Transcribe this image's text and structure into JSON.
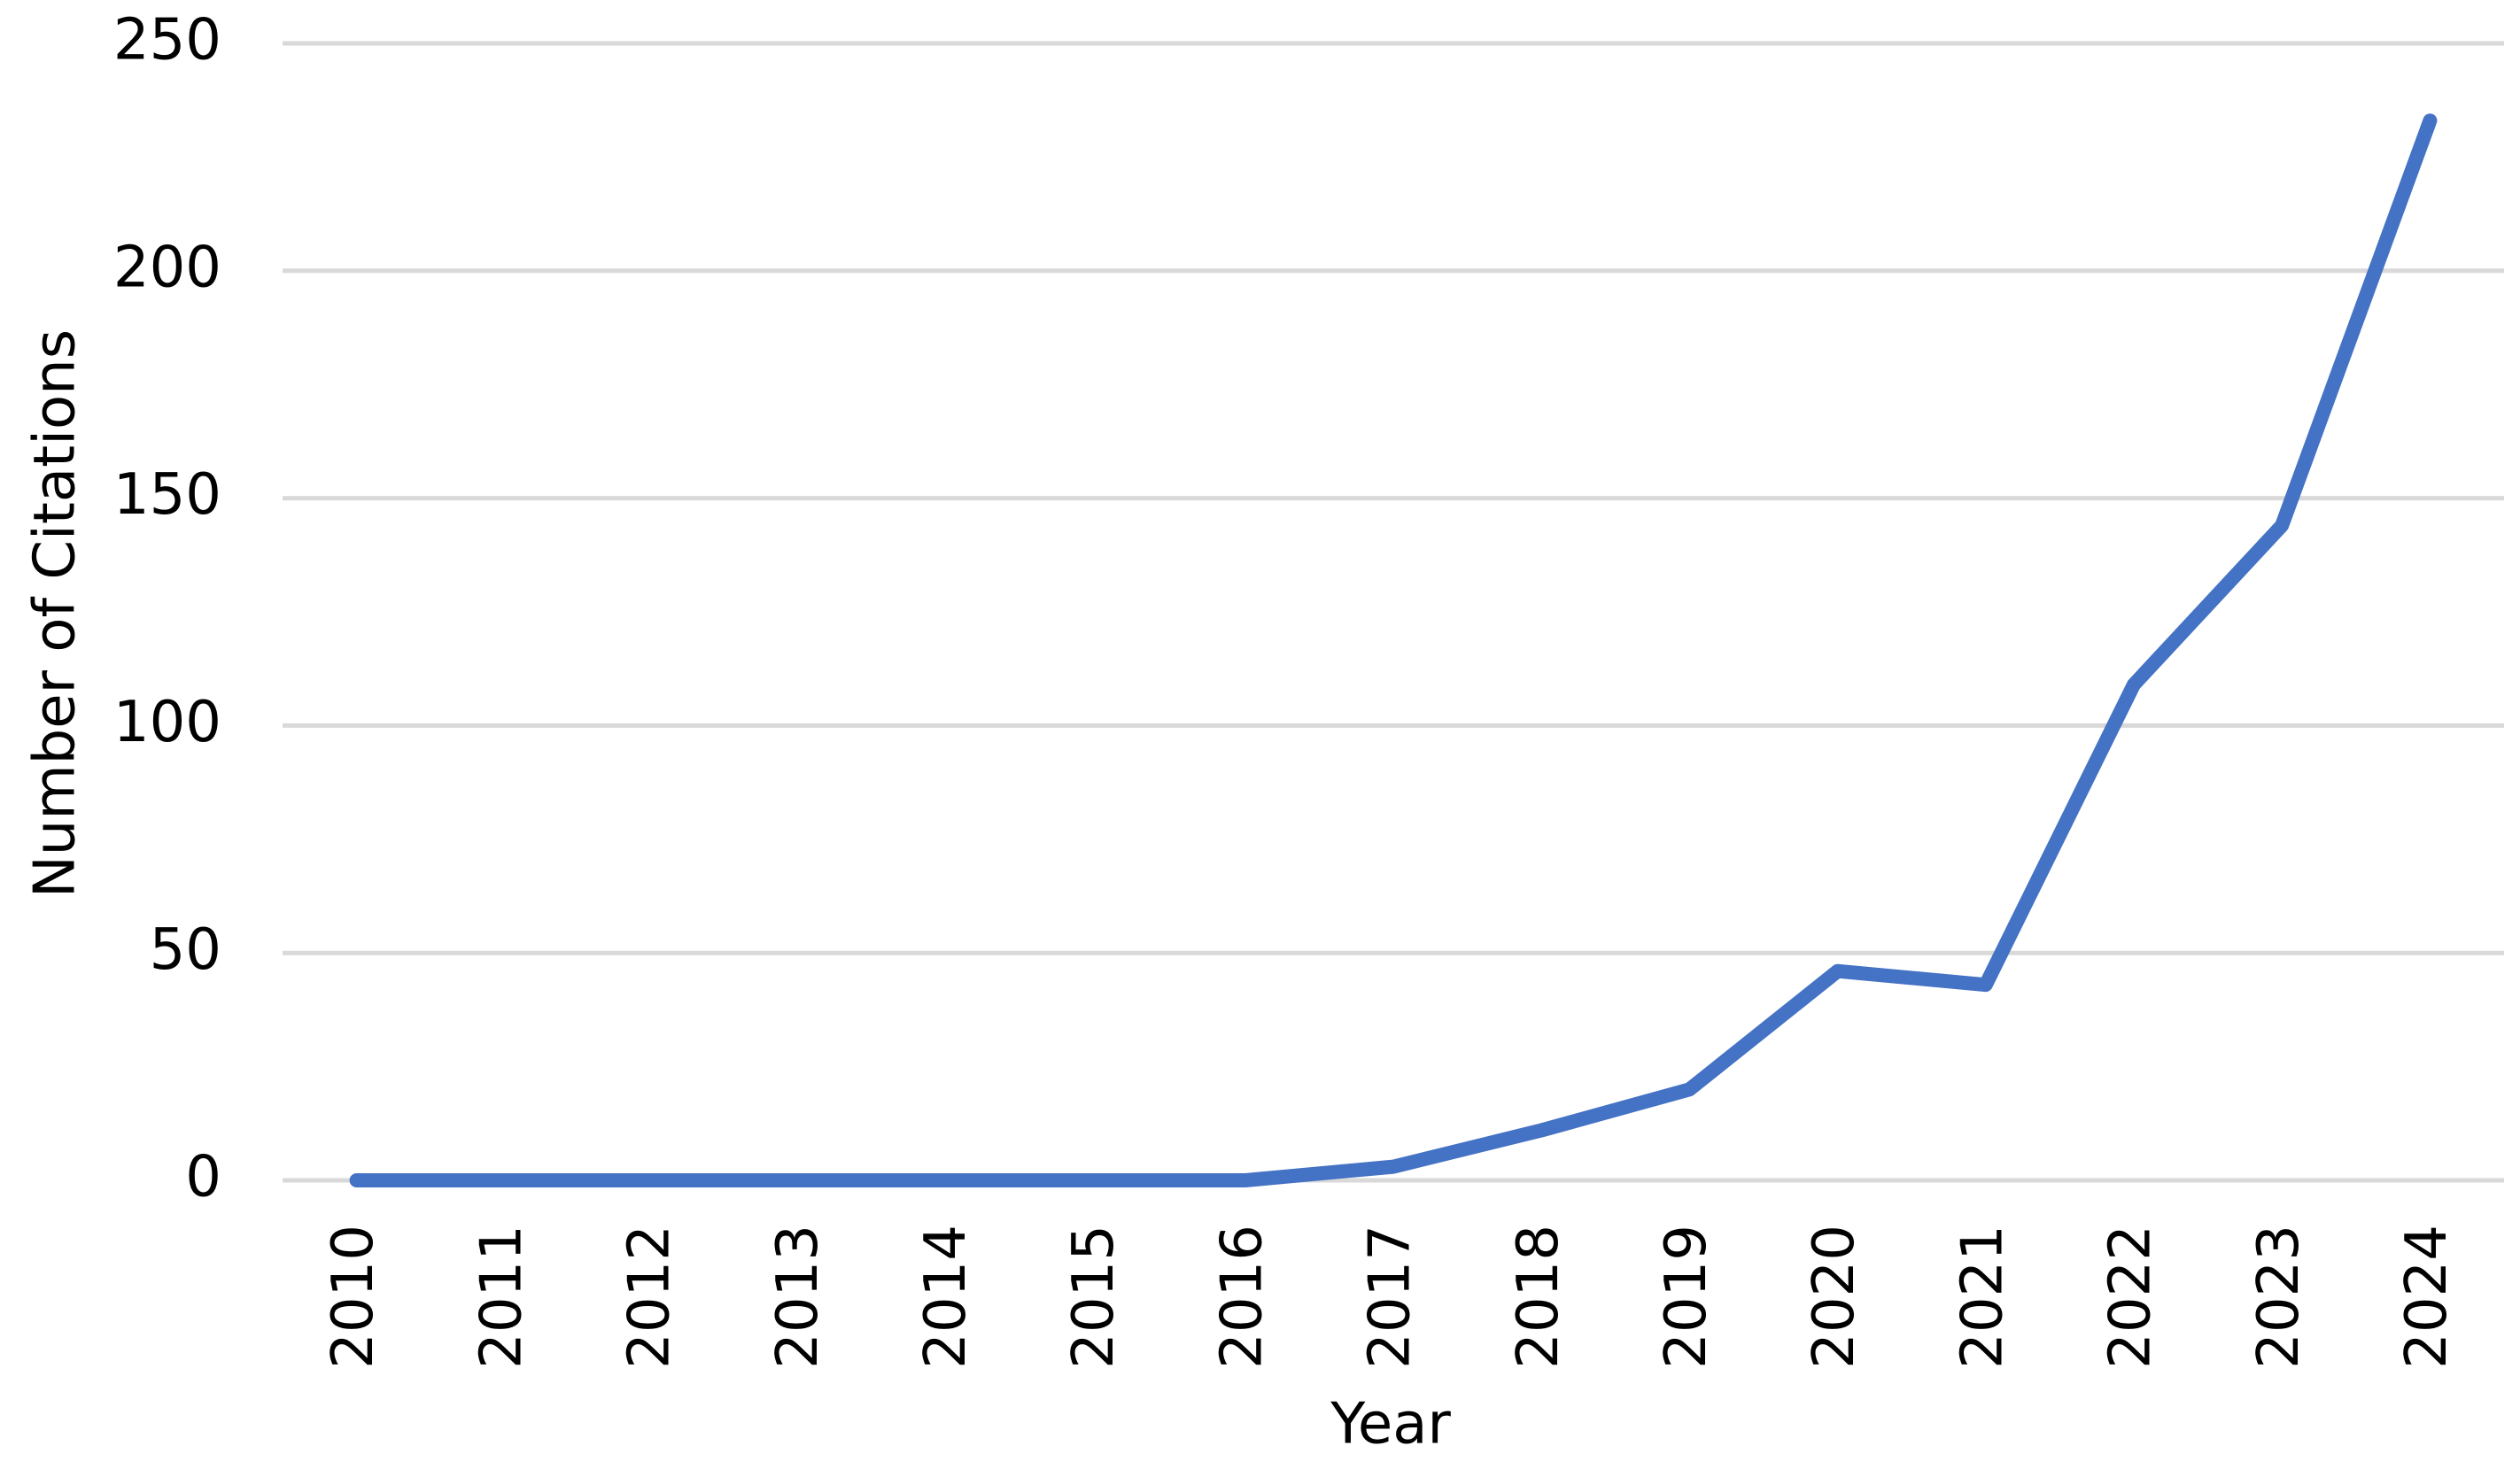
{
  "chart_data": {
    "type": "line",
    "x_label": "Year",
    "y_label": "Number of Citations",
    "categories": [
      "2010",
      "2011",
      "2012",
      "2013",
      "2014",
      "2015",
      "2016",
      "2017",
      "2018",
      "2019",
      "2020",
      "2021",
      "2022",
      "2023",
      "2024"
    ],
    "values": [
      0,
      0,
      0,
      0,
      0,
      0,
      0,
      3,
      11,
      20,
      46,
      43,
      109,
      144,
      233
    ],
    "color": "#4472c4",
    "ylim": [
      0,
      250
    ],
    "yticks": [
      0,
      50,
      100,
      150,
      200,
      250
    ],
    "grid": true
  }
}
